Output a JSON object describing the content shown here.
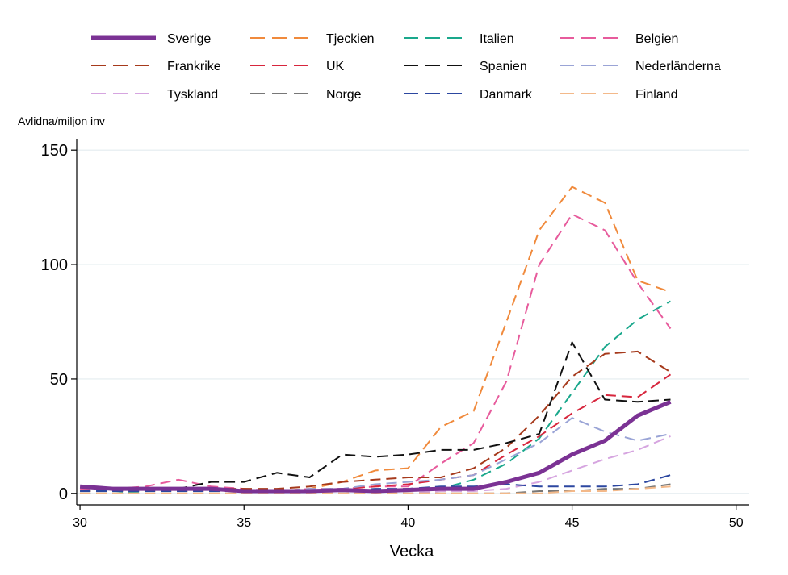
{
  "chart_data": {
    "type": "line",
    "title": "",
    "xlabel": "Vecka",
    "ylabel": "Avlidna/miljon inv",
    "xlim": [
      29.9,
      50.4
    ],
    "ylim": [
      -5,
      155
    ],
    "xticks": [
      30,
      35,
      40,
      45,
      50
    ],
    "yticks": [
      0,
      50,
      100,
      150
    ],
    "grid": "horizontal",
    "legend_position": "top",
    "x": [
      30,
      31,
      32,
      33,
      34,
      35,
      36,
      37,
      38,
      39,
      40,
      41,
      42,
      43,
      44,
      45,
      46,
      47,
      48
    ],
    "series": [
      {
        "name": "Sverige",
        "color": "#7b3294",
        "style": "solid",
        "width": 5,
        "values": [
          3,
          2,
          2,
          2,
          2,
          1,
          1,
          1,
          1.5,
          1,
          1.5,
          2,
          2,
          5,
          9,
          17,
          23,
          34,
          40
        ]
      },
      {
        "name": "Tjeckien",
        "color": "#f08a3c",
        "style": "dash",
        "width": 2,
        "values": [
          1,
          1,
          1,
          1,
          1,
          1,
          1,
          2,
          5,
          10,
          11,
          29,
          36,
          75,
          115,
          134,
          127,
          93,
          88
        ]
      },
      {
        "name": "Italien",
        "color": "#1aa88c",
        "style": "dash",
        "width": 2,
        "values": [
          0,
          0,
          1,
          1,
          1,
          1,
          1,
          1,
          1,
          1,
          2,
          2,
          6,
          13,
          24,
          44,
          64,
          76,
          84
        ]
      },
      {
        "name": "Belgien",
        "color": "#e75b9c",
        "style": "dash",
        "width": 2,
        "values": [
          2,
          2,
          3,
          6,
          3,
          2,
          1,
          2,
          2,
          3,
          3,
          13,
          22,
          49,
          100,
          122,
          115,
          92,
          72
        ]
      },
      {
        "name": "Frankrike",
        "color": "#a63a1c",
        "style": "dash",
        "width": 2,
        "values": [
          1,
          1,
          2,
          2,
          2,
          2,
          2,
          3,
          5,
          6,
          7,
          7,
          11,
          20,
          34,
          51,
          61,
          62,
          53
        ]
      },
      {
        "name": "UK",
        "color": "#d7263d",
        "style": "dash",
        "width": 2,
        "values": [
          1,
          1,
          1,
          1,
          1,
          1,
          1,
          1,
          2,
          3,
          4,
          6,
          8,
          17,
          25,
          35,
          43,
          42,
          52
        ]
      },
      {
        "name": "Spanien",
        "color": "#111111",
        "style": "dash",
        "width": 2,
        "values": [
          1,
          1,
          2,
          2,
          5,
          5,
          9,
          7,
          17,
          16,
          17,
          19,
          19,
          22,
          26,
          66,
          41,
          40,
          41
        ]
      },
      {
        "name": "Nederländerna",
        "color": "#9aa4d6",
        "style": "dash",
        "width": 2,
        "values": [
          1,
          1,
          1,
          1,
          1,
          1,
          1,
          2,
          2,
          4,
          5,
          6,
          8,
          15,
          22,
          33,
          27,
          23,
          26
        ]
      },
      {
        "name": "Tyskland",
        "color": "#d6a5e0",
        "style": "dash",
        "width": 2,
        "values": [
          0,
          0,
          0,
          0,
          0,
          0,
          0,
          0,
          0,
          0,
          0,
          1,
          1,
          2,
          5,
          10,
          15,
          19,
          25
        ]
      },
      {
        "name": "Norge",
        "color": "#777777",
        "style": "dash",
        "width": 2,
        "values": [
          0,
          0,
          0,
          0,
          0,
          0,
          0,
          0,
          0,
          0,
          0,
          0,
          0,
          0,
          1,
          1,
          2,
          2,
          4
        ]
      },
      {
        "name": "Danmark",
        "color": "#2c47a0",
        "style": "dash",
        "width": 2,
        "values": [
          1,
          1,
          1,
          1,
          1,
          1,
          1,
          1,
          1,
          2,
          2,
          3,
          3,
          4,
          3,
          3,
          3,
          4,
          8
        ]
      },
      {
        "name": "Finland",
        "color": "#f3b98a",
        "style": "dash",
        "width": 2,
        "values": [
          0,
          0,
          0,
          0,
          0,
          0,
          0,
          0,
          0,
          0,
          0,
          0,
          0,
          0,
          0,
          1,
          1,
          2,
          3
        ]
      }
    ]
  }
}
